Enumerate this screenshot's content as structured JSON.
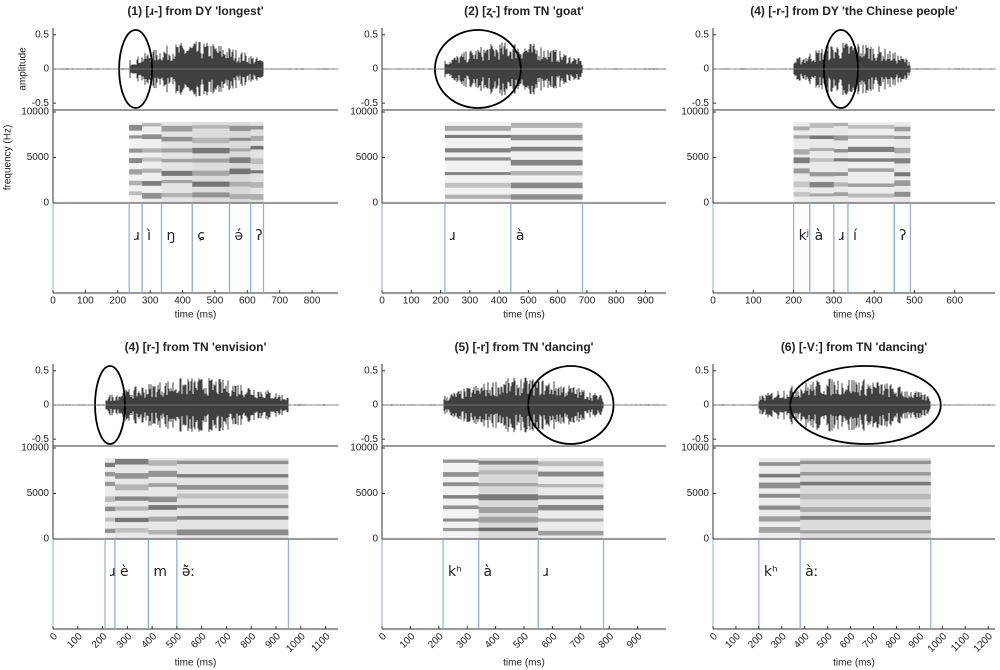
{
  "chart_data": [
    {
      "type": "phonetic",
      "title": "(1) [ɹ-] from DY 'longest'",
      "xlabel": "time (ms)",
      "ylabel_wave": "amplitude",
      "ylabel_spec": "frequency (Hz)",
      "xlim": [
        0,
        880
      ],
      "xticks": [
        0,
        100,
        200,
        300,
        400,
        500,
        600,
        700,
        800
      ],
      "amp_ylim": [
        -0.6,
        0.6
      ],
      "amp_yticks": [
        0.5,
        0,
        -0.5
      ],
      "freq_ylim": [
        0,
        10000
      ],
      "freq_yticks": [
        10000,
        5000,
        0
      ],
      "segments": [
        {
          "label": "ɹ",
          "start": 235,
          "end": 275
        },
        {
          "label": "ì",
          "start": 275,
          "end": 335
        },
        {
          "label": "ŋ",
          "start": 335,
          "end": 430
        },
        {
          "label": "ɕ",
          "start": 430,
          "end": 545
        },
        {
          "label": "ə́",
          "start": 545,
          "end": 610
        },
        {
          "label": "ʔ",
          "start": 610,
          "end": 650
        }
      ],
      "highlight": 0
    },
    {
      "type": "phonetic",
      "title": "(2) [ʐ-] from TN 'goat'",
      "xlabel": "time (ms)",
      "xlim": [
        0,
        970
      ],
      "xticks": [
        0,
        100,
        200,
        300,
        400,
        500,
        600,
        700,
        800,
        900
      ],
      "amp_ylim": [
        -0.6,
        0.6
      ],
      "amp_yticks": [
        0.5,
        0,
        -0.5
      ],
      "freq_ylim": [
        0,
        10000
      ],
      "freq_yticks": [
        10000,
        5000,
        0
      ],
      "segments": [
        {
          "label": "ɹ",
          "start": 215,
          "end": 440
        },
        {
          "label": "à",
          "start": 440,
          "end": 685
        }
      ],
      "highlight": 0
    },
    {
      "type": "phonetic",
      "title": "(4) [-r-] from DY 'the Chinese people'",
      "xlabel": "time (ms)",
      "xlim": [
        0,
        700
      ],
      "xticks": [
        0,
        100,
        200,
        300,
        400,
        500,
        600
      ],
      "amp_ylim": [
        -0.6,
        0.6
      ],
      "amp_yticks": [
        0.5,
        0,
        -0.5
      ],
      "freq_ylim": [
        0,
        10000
      ],
      "freq_yticks": [
        10000,
        5000,
        0
      ],
      "segments": [
        {
          "label": "kʲ",
          "start": 200,
          "end": 240
        },
        {
          "label": "à",
          "start": 240,
          "end": 300
        },
        {
          "label": "ɹ",
          "start": 300,
          "end": 335
        },
        {
          "label": "í",
          "start": 335,
          "end": 450
        },
        {
          "label": "ʔ",
          "start": 450,
          "end": 490
        }
      ],
      "highlight": 2
    },
    {
      "type": "phonetic",
      "title": "(4) [r-] from TN 'envision'",
      "xlabel": "time (ms)",
      "xlim": [
        0,
        1150
      ],
      "xticks": [
        0,
        100,
        200,
        300,
        400,
        500,
        600,
        700,
        800,
        900,
        1000,
        1100
      ],
      "amp_ylim": [
        -0.6,
        0.6
      ],
      "amp_yticks": [
        0.5,
        0,
        -0.5
      ],
      "freq_ylim": [
        0,
        10000
      ],
      "freq_yticks": [
        10000,
        5000,
        0
      ],
      "segments": [
        {
          "label": "ɹ",
          "start": 210,
          "end": 250
        },
        {
          "label": "è",
          "start": 250,
          "end": 385
        },
        {
          "label": "m",
          "start": 385,
          "end": 500
        },
        {
          "label": "ə̃̀ː",
          "start": 500,
          "end": 950
        }
      ],
      "highlight": 0
    },
    {
      "type": "phonetic",
      "title": "(5) [-r] from TN 'dancing'",
      "xlabel": "time (ms)",
      "xlim": [
        0,
        1000
      ],
      "xticks": [
        0,
        100,
        200,
        300,
        400,
        500,
        600,
        700,
        800,
        900
      ],
      "amp_ylim": [
        -0.6,
        0.6
      ],
      "amp_yticks": [
        0.5,
        0,
        -0.5
      ],
      "freq_ylim": [
        0,
        10000
      ],
      "freq_yticks": [
        10000,
        5000,
        0
      ],
      "segments": [
        {
          "label": "kʰ",
          "start": 215,
          "end": 340
        },
        {
          "label": "à",
          "start": 340,
          "end": 550
        },
        {
          "label": "ɹ",
          "start": 550,
          "end": 780
        }
      ],
      "highlight": 2
    },
    {
      "type": "phonetic",
      "title": "(6) [-Vː] from TN 'dancing'",
      "xlabel": "time (ms)",
      "xlim": [
        0,
        1230
      ],
      "xticks": [
        0,
        100,
        200,
        300,
        400,
        500,
        600,
        700,
        800,
        900,
        1000,
        1100,
        1200
      ],
      "amp_ylim": [
        -0.6,
        0.6
      ],
      "amp_yticks": [
        0.5,
        0,
        -0.5
      ],
      "freq_ylim": [
        0,
        10000
      ],
      "freq_yticks": [
        10000,
        5000,
        0
      ],
      "segments": [
        {
          "label": "kʰ",
          "start": 200,
          "end": 380
        },
        {
          "label": "àː",
          "start": 380,
          "end": 950
        }
      ],
      "highlight": 1
    }
  ]
}
